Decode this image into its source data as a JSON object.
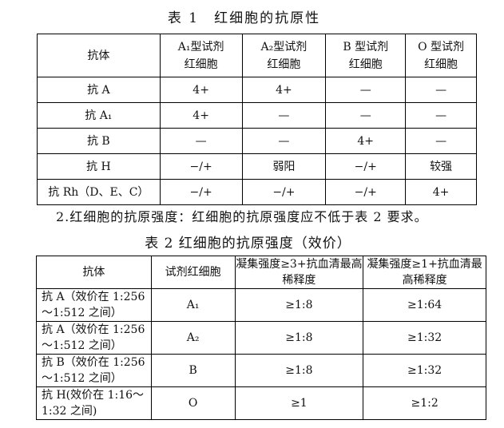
{
  "table1": {
    "title": "表 1　红细胞的抗原性",
    "headers": [
      "抗体",
      "A₁型试剂红细胞",
      "A₂型试剂红细胞",
      "B型试剂红细胞",
      "O型试剂红细胞"
    ],
    "header_lines": [
      [
        "抗体",
        ""
      ],
      [
        "A₁型试剂",
        "红细胞"
      ],
      [
        "A₂型试剂",
        "红细胞"
      ],
      [
        "B 型试剂",
        "红细胞"
      ],
      [
        "O 型试剂",
        "红细胞"
      ]
    ],
    "rows": [
      [
        "抗 A",
        "4+",
        "4+",
        "—",
        "—"
      ],
      [
        "抗 A₁",
        "4+",
        "—",
        "—",
        "—"
      ],
      [
        "抗 B",
        "—",
        "—",
        "4+",
        "—"
      ],
      [
        "抗 H",
        "−/+",
        "弱阳",
        "−/+",
        "较强"
      ],
      [
        "抗 Rh（D、E、C）",
        "−/+",
        "−/+",
        "−/+",
        "4+"
      ]
    ]
  },
  "paragraph": "2.红细胞的抗原强度：红细胞的抗原强度应不低于表 2 要求。",
  "table2": {
    "title": "表 2  红细胞的抗原强度（效价）",
    "headers": [
      "抗体",
      "试剂红细胞",
      "凝集强度≥3+抗血清最高稀释度",
      "凝集强度≥1+抗血清最高稀释度"
    ],
    "rows": [
      [
        "抗 A（效价在 1:256～1:512 之间）",
        "A₁",
        "≥1:8",
        "≥1:64"
      ],
      [
        "抗 A（效价在 1:256～1:512 之间）",
        "A₂",
        "≥1:8",
        "≥1:32"
      ],
      [
        "抗 B（效价在 1:256～1:512 之间）",
        "B",
        "≥1:8",
        "≥1:32"
      ],
      [
        "抗 H(效价在 1:16～1:32 之间)",
        "O",
        "≥1",
        "≥1:2"
      ]
    ]
  }
}
